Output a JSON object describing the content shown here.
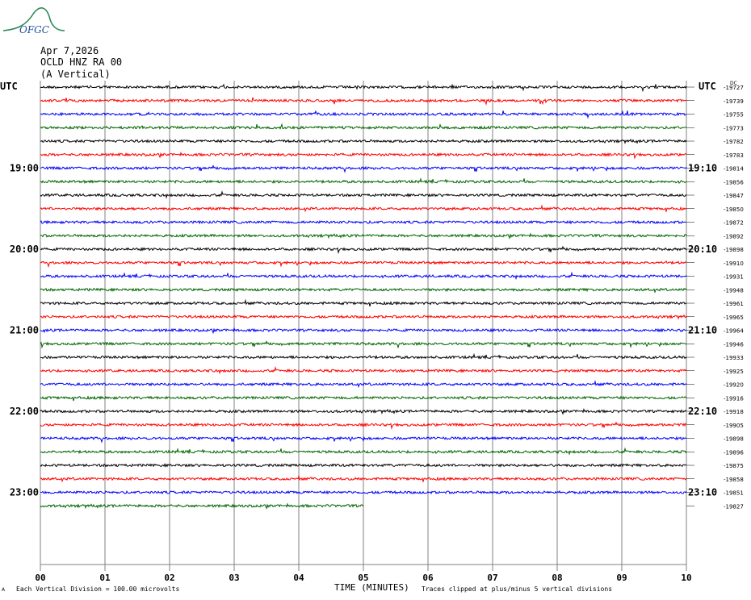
{
  "header": {
    "date": "Apr 7,2026",
    "station": "OCLD HNZ RA 00",
    "component": "(A Vertical)"
  },
  "logo_text": "OFGC",
  "utc_left": "UTC",
  "utc_right": "UTC",
  "dc_label": "DC",
  "footer": {
    "scale_note": "Each Vertical Division =  100.00 microvolts",
    "xlabel": "TIME (MINUTES)",
    "clip_note": "Traces clipped at plus/minus 5 vertical divisions"
  },
  "colors": {
    "black": "#000000",
    "red": "#ff0000",
    "blue": "#0000ff",
    "green": "#006400",
    "grid": "#808080"
  },
  "chart_data": {
    "type": "line",
    "title": "",
    "xlabel": "TIME (MINUTES)",
    "x_ticks": [
      "00",
      "01",
      "02",
      "03",
      "04",
      "05",
      "06",
      "07",
      "08",
      "09",
      "10"
    ],
    "xlim": [
      0,
      10
    ],
    "left_time_labels": [
      {
        "row": 6,
        "text": "19:00"
      },
      {
        "row": 12,
        "text": "20:00"
      },
      {
        "row": 18,
        "text": "21:00"
      },
      {
        "row": 24,
        "text": "22:00"
      },
      {
        "row": 30,
        "text": "23:00"
      }
    ],
    "right_time_labels": [
      {
        "row": 6,
        "text": "19:10"
      },
      {
        "row": 12,
        "text": "20:10"
      },
      {
        "row": 18,
        "text": "21:10"
      },
      {
        "row": 24,
        "text": "22:10"
      },
      {
        "row": 30,
        "text": "23:10"
      }
    ],
    "trace_colors": [
      "black",
      "red",
      "blue",
      "green"
    ],
    "traces": [
      {
        "dc": "-19727",
        "end_minute": 10
      },
      {
        "dc": "-19739",
        "end_minute": 10
      },
      {
        "dc": "-19755",
        "end_minute": 10
      },
      {
        "dc": "-19773",
        "end_minute": 10
      },
      {
        "dc": "-19782",
        "end_minute": 10
      },
      {
        "dc": "-19783",
        "end_minute": 10
      },
      {
        "dc": "-19814",
        "end_minute": 10
      },
      {
        "dc": "-19856",
        "end_minute": 10
      },
      {
        "dc": "-19847",
        "end_minute": 10
      },
      {
        "dc": "-19850",
        "end_minute": 10
      },
      {
        "dc": "-19872",
        "end_minute": 10
      },
      {
        "dc": "-19892",
        "end_minute": 10
      },
      {
        "dc": "-19898",
        "end_minute": 10
      },
      {
        "dc": "-19910",
        "end_minute": 10
      },
      {
        "dc": "-19931",
        "end_minute": 10
      },
      {
        "dc": "-19948",
        "end_minute": 10
      },
      {
        "dc": "-19961",
        "end_minute": 10
      },
      {
        "dc": "-19965",
        "end_minute": 10
      },
      {
        "dc": "-19964",
        "end_minute": 10
      },
      {
        "dc": "-19946",
        "end_minute": 10
      },
      {
        "dc": "-19933",
        "end_minute": 10
      },
      {
        "dc": "-19925",
        "end_minute": 10
      },
      {
        "dc": "-19920",
        "end_minute": 10
      },
      {
        "dc": "-19916",
        "end_minute": 10
      },
      {
        "dc": "-19918",
        "end_minute": 10
      },
      {
        "dc": "-19905",
        "end_minute": 10
      },
      {
        "dc": "-19898",
        "end_minute": 10
      },
      {
        "dc": "-19896",
        "end_minute": 10
      },
      {
        "dc": "-19875",
        "end_minute": 10
      },
      {
        "dc": "-19858",
        "end_minute": 10
      },
      {
        "dc": "-19851",
        "end_minute": 10
      },
      {
        "dc": "-19827",
        "end_minute": 5
      }
    ]
  }
}
